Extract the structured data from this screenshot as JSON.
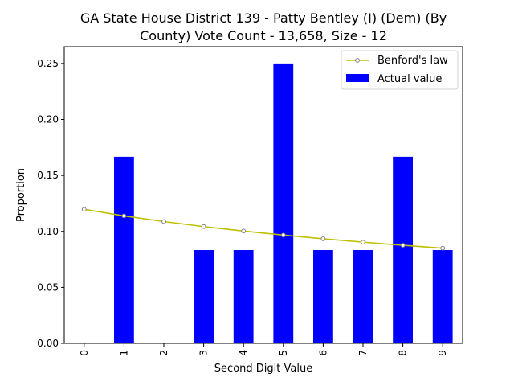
{
  "chart_data": {
    "type": "bar",
    "title_line1": "GA State House District 139 - Patty Bentley (I) (Dem) (By",
    "title_line2": "County) Vote Count - 13,658, Size - 12",
    "xlabel": "Second Digit Value",
    "ylabel": "Proportion",
    "categories": [
      "0",
      "1",
      "2",
      "3",
      "4",
      "5",
      "6",
      "7",
      "8",
      "9"
    ],
    "ylim": [
      0,
      0.265
    ],
    "yticks": [
      "0.00",
      "0.05",
      "0.10",
      "0.15",
      "0.20",
      "0.25"
    ],
    "series": [
      {
        "name": "Actual value",
        "kind": "bar",
        "color": "#0000ff",
        "values": [
          0.0,
          0.1667,
          0.0,
          0.0833,
          0.0833,
          0.25,
          0.0833,
          0.0833,
          0.1667,
          0.0833
        ]
      },
      {
        "name": "Benford's law",
        "kind": "line",
        "color": "#bfbf00",
        "marker_color": "#808080",
        "values": [
          0.1197,
          0.1139,
          0.1088,
          0.1043,
          0.1003,
          0.0967,
          0.0934,
          0.0904,
          0.0876,
          0.085
        ]
      }
    ],
    "legend": {
      "position": "top-right"
    },
    "grid": false
  }
}
